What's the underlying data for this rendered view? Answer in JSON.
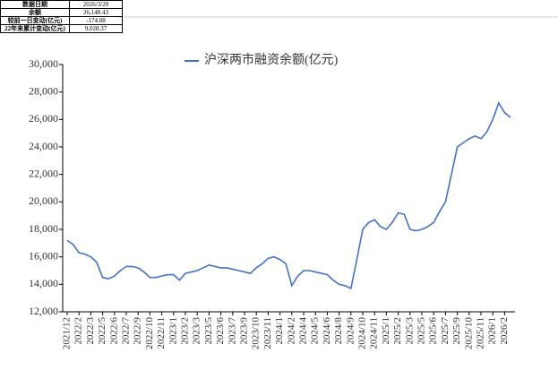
{
  "table": {
    "rows": [
      [
        "数据日期",
        "2026/3/20"
      ],
      [
        "余额",
        "26,148.43"
      ],
      [
        "较前一日变动(亿元)",
        "-174.08"
      ],
      [
        "22年来累计变动(亿元)",
        "9,028.37"
      ]
    ]
  },
  "chart_data": {
    "type": "line",
    "categories": [
      "2021/12",
      null,
      "2022/2",
      null,
      "2022/3",
      null,
      "2022/5",
      null,
      "2022/6",
      null,
      "2022/7",
      null,
      "2022/9",
      null,
      "2022/10",
      null,
      "2022/11",
      null,
      "2023/1",
      null,
      "2023/2",
      null,
      "2023/3",
      null,
      "2023/5",
      null,
      "2023/6",
      null,
      "2023/7",
      null,
      "2023/9",
      null,
      "2023/10",
      null,
      "2023/11",
      null,
      "2024/1",
      null,
      "2024/2",
      null,
      "2024/4",
      null,
      "2024/5",
      null,
      "2024/6",
      null,
      "2024/8",
      null,
      "2024/9",
      null,
      "2024/10",
      null,
      "2024/11",
      null,
      "2025/1",
      null,
      "2025/2",
      null,
      "2025/3",
      null,
      "2025/5",
      null,
      "2025/6",
      null,
      "2025/7",
      null,
      "2025/9",
      null,
      "2025/10",
      null,
      "2025/11",
      null,
      "2026/1",
      null,
      "2026/2",
      null
    ],
    "series": [
      {
        "name": "沪深两市融资余额(亿元)",
        "color": "#4472c4",
        "values": [
          17200,
          16900,
          16300,
          16200,
          16000,
          15600,
          14500,
          14400,
          14600,
          15000,
          15300,
          15300,
          15200,
          14900,
          14500,
          14500,
          14600,
          14700,
          14700,
          14300,
          14800,
          14900,
          15000,
          15200,
          15400,
          15300,
          15200,
          15200,
          15100,
          15000,
          14900,
          14800,
          15200,
          15500,
          15900,
          16000,
          15800,
          15500,
          13900,
          14600,
          15000,
          15000,
          14900,
          14800,
          14700,
          14300,
          14000,
          13900,
          13700,
          15800,
          18000,
          18500,
          18700,
          18200,
          18000,
          18500,
          19200,
          19100,
          18000,
          17900,
          18000,
          18200,
          18500,
          19300,
          20000,
          22000,
          24000,
          24300,
          24600,
          24800,
          24600,
          25100,
          26000,
          27200,
          26500,
          26150
        ]
      }
    ],
    "ylim": [
      12000,
      30000
    ],
    "yticks": [
      {
        "value": 12000,
        "label": "12,000"
      },
      {
        "value": 14000,
        "label": "14,000"
      },
      {
        "value": 16000,
        "label": "16,000"
      },
      {
        "value": 18000,
        "label": "18,000"
      },
      {
        "value": 20000,
        "label": "20,000"
      },
      {
        "value": 22000,
        "label": "22,000"
      },
      {
        "value": 24000,
        "label": "24,000"
      },
      {
        "value": 26000,
        "label": "26,000"
      },
      {
        "value": 28000,
        "label": "28,000"
      },
      {
        "value": 30000,
        "label": "30,000"
      }
    ],
    "legend": "top"
  }
}
